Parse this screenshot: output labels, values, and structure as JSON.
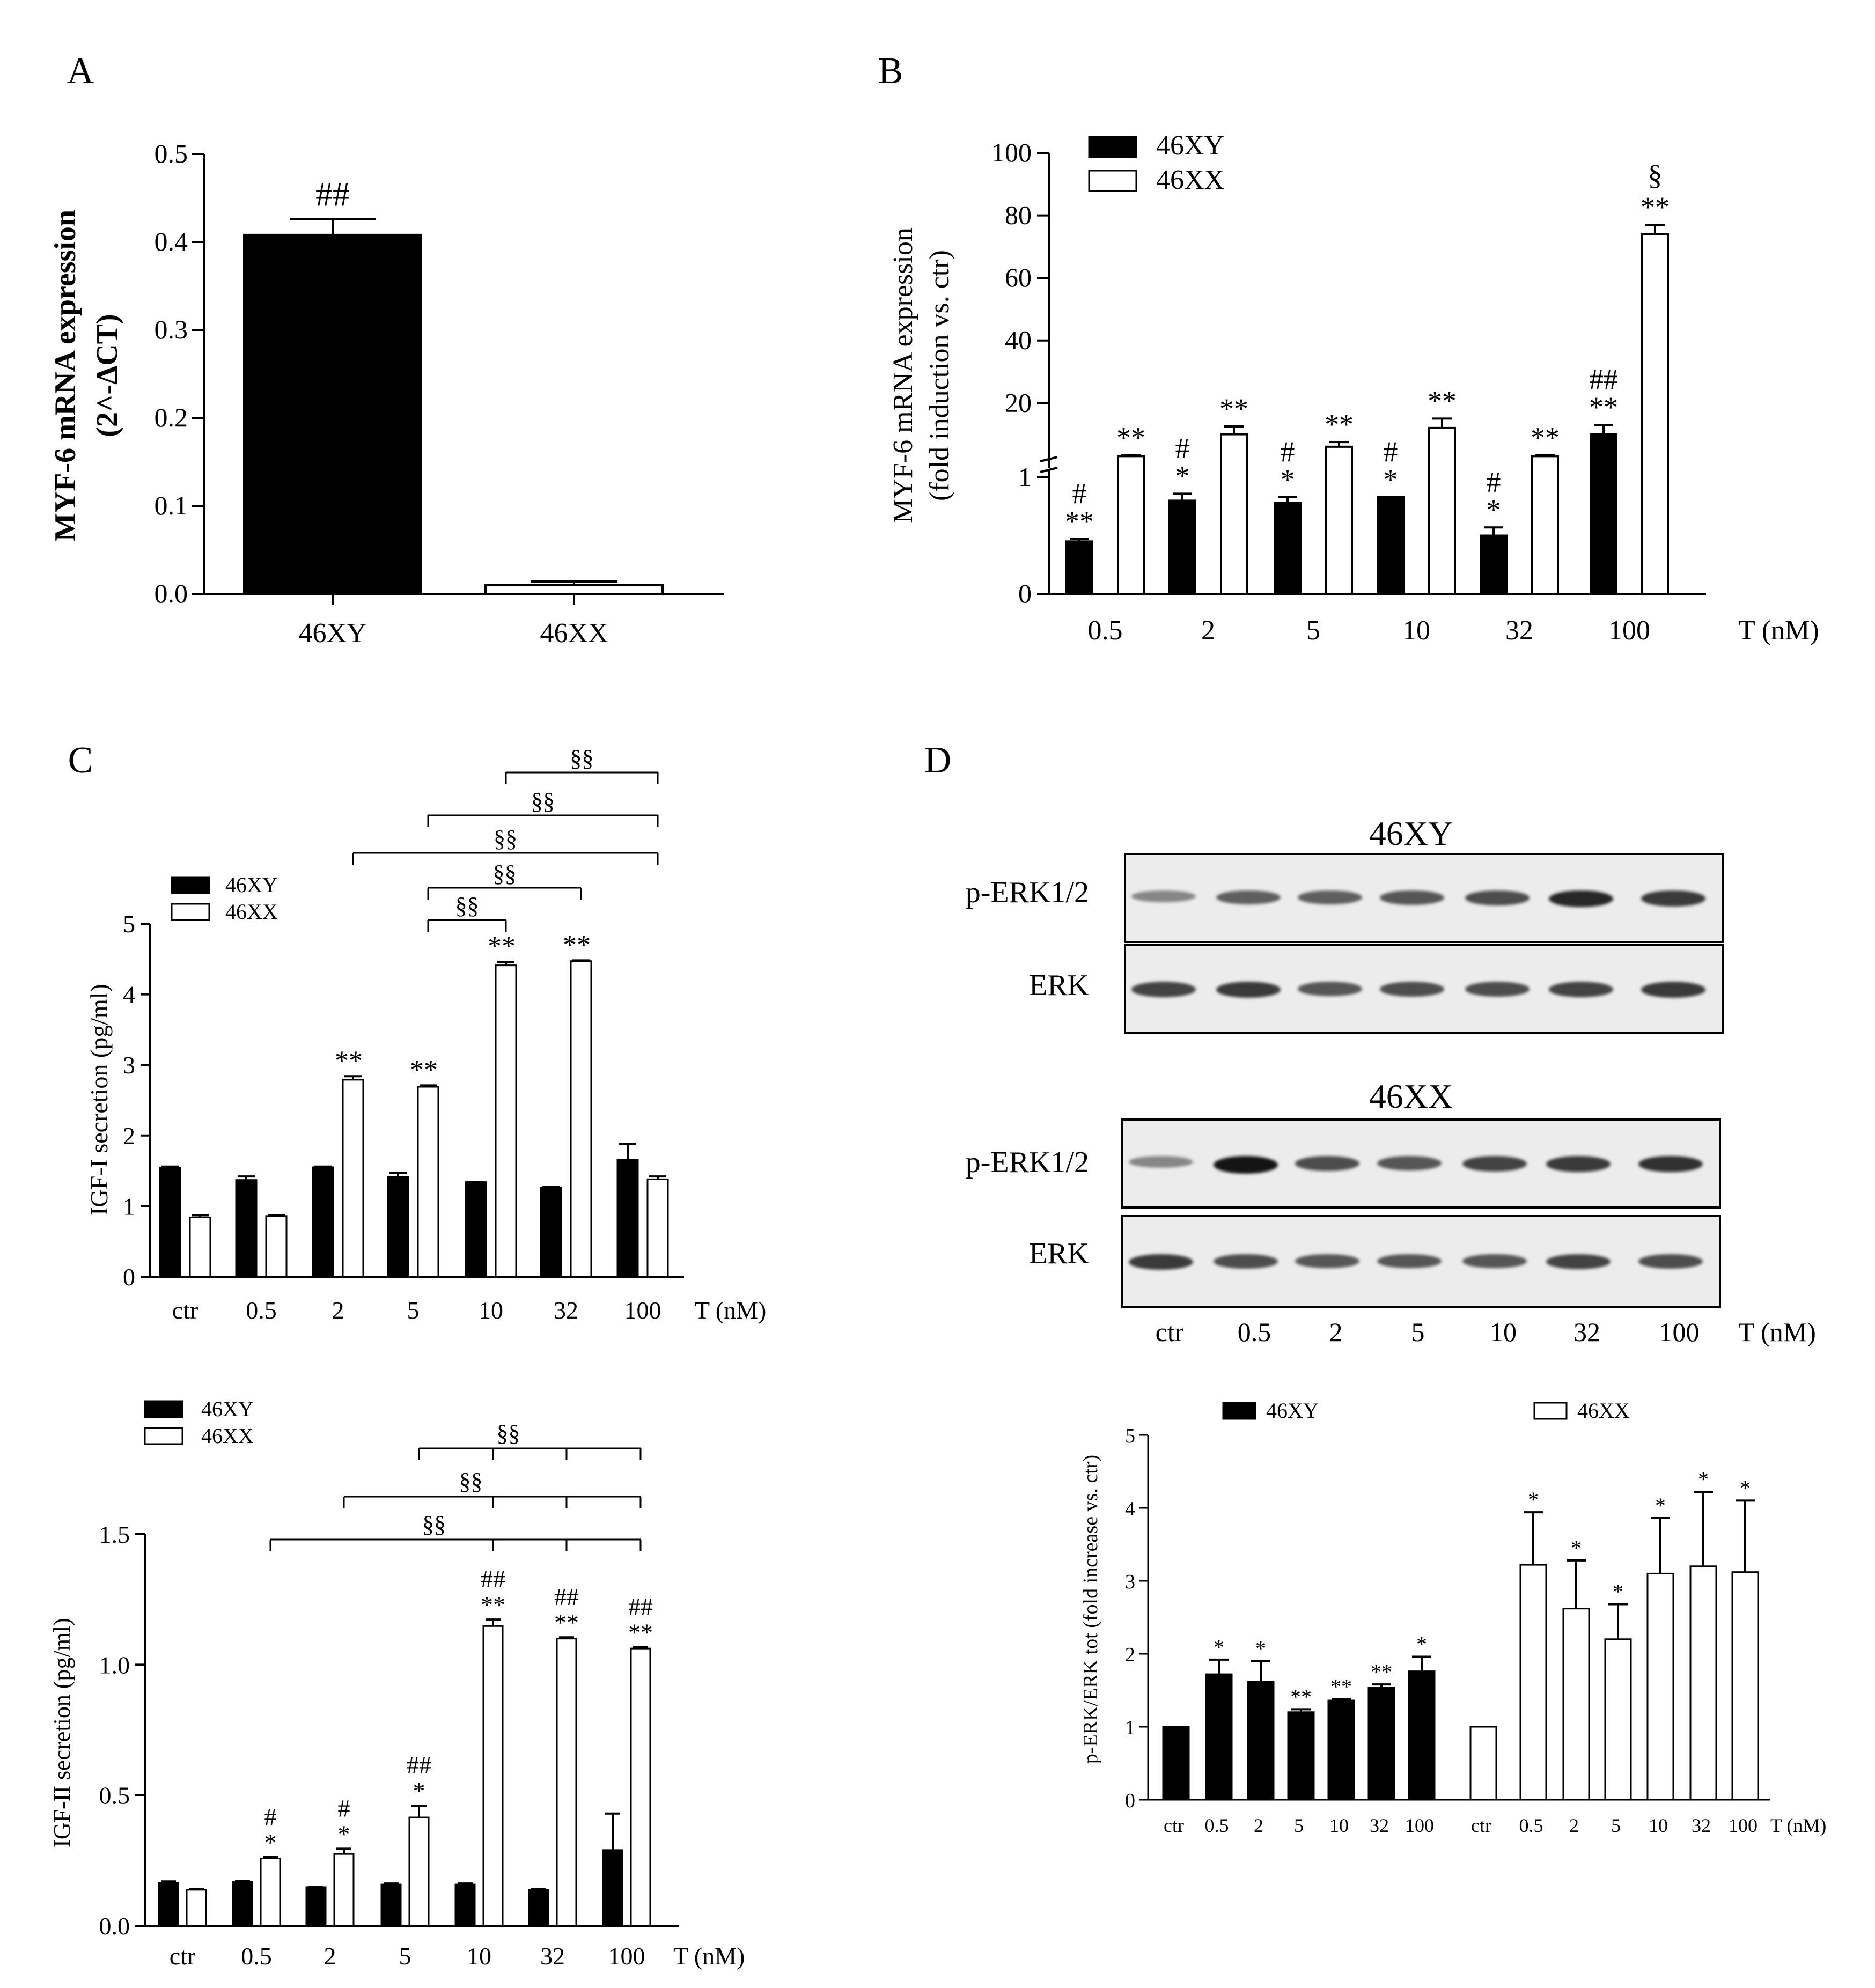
{
  "chart_data": [
    {
      "panel": "A",
      "type": "bar",
      "ylabel": "MYF-6 mRNA expression",
      "ylabel2": "(2^-ΔCT)",
      "categories": [
        "46XY",
        "46XX"
      ],
      "values": [
        0.408,
        0.01
      ],
      "errors": [
        0.018,
        0.004
      ],
      "yticks": [
        "0.0",
        "0.1",
        "0.2",
        "0.3",
        "0.4",
        "0.5"
      ],
      "ylim": [
        0,
        0.5
      ],
      "annotations": [
        "##",
        ""
      ],
      "fills": [
        "#000000",
        "#ffffff"
      ]
    },
    {
      "panel": "B",
      "type": "bar",
      "ylabel": "MYF-6 mRNA expression",
      "ylabel2": "(fold induction vs. ctr)",
      "xlabel": "T (nM)",
      "categories": [
        "0.5",
        "2",
        "5",
        "10",
        "32",
        "100"
      ],
      "series": [
        {
          "name": "46XY",
          "values": [
            0.45,
            0.8,
            0.78,
            0.83,
            0.5,
            10
          ],
          "errors": [
            0.02,
            0.06,
            0.05,
            0.0,
            0.07,
            3
          ],
          "fill": "#000000",
          "annotations": [
            [
              "#",
              "**"
            ],
            [
              "#",
              "*"
            ],
            [
              "#",
              "*"
            ],
            [
              "#",
              "*"
            ],
            [
              "#",
              "*"
            ],
            [
              "##",
              "**"
            ]
          ]
        },
        {
          "name": "46XX",
          "values": [
            3,
            10,
            6,
            12,
            3,
            74
          ],
          "errors": [
            0.3,
            2.5,
            1.5,
            3,
            0.3,
            3
          ],
          "fill": "#ffffff",
          "annotations": [
            [
              "**"
            ],
            [
              "**"
            ],
            [
              "**"
            ],
            [
              "**"
            ],
            [
              "**"
            ],
            [
              "§",
              "**"
            ]
          ]
        }
      ],
      "yticks": [
        "0",
        "1",
        "20",
        "40",
        "60",
        "80",
        "100"
      ],
      "axis_break": true,
      "legend": "top-left"
    },
    {
      "panel": "C-top",
      "type": "bar",
      "ylabel": "IGF-I secretion (pg/ml)",
      "xlabel": "T (nM)",
      "categories": [
        "ctr",
        "0.5",
        "2",
        "5",
        "10",
        "32",
        "100"
      ],
      "series": [
        {
          "name": "46XY",
          "values": [
            1.54,
            1.37,
            1.55,
            1.41,
            1.34,
            1.26,
            1.66
          ],
          "errors": [
            0.02,
            0.05,
            0.01,
            0.06,
            0.0,
            0.01,
            0.22
          ],
          "fill": "#000000"
        },
        {
          "name": "46XX",
          "values": [
            0.84,
            0.86,
            2.79,
            2.69,
            4.41,
            4.47,
            1.38
          ],
          "errors": [
            0.03,
            0.01,
            0.05,
            0.02,
            0.05,
            0.01,
            0.04
          ],
          "fill": "#ffffff",
          "annotations": [
            "",
            "",
            "**",
            "**",
            "**",
            "**",
            ""
          ]
        }
      ],
      "yticks": [
        "0",
        "1",
        "2",
        "3",
        "4",
        "5"
      ],
      "ylim": [
        0,
        5
      ],
      "legend": "top-left",
      "comparisons": [
        "§§",
        "§§",
        "§§",
        "§§",
        "§§"
      ]
    },
    {
      "panel": "C-bottom",
      "type": "bar",
      "ylabel": "IGF-II secretion (pg/ml)",
      "xlabel": "T (nM)",
      "categories": [
        "ctr",
        "0.5",
        "2",
        "5",
        "10",
        "32",
        "100"
      ],
      "series": [
        {
          "name": "46XY",
          "values": [
            0.165,
            0.168,
            0.148,
            0.158,
            0.158,
            0.138,
            0.29
          ],
          "errors": [
            0.005,
            0.003,
            0.002,
            0.004,
            0.004,
            0.002,
            0.14
          ],
          "fill": "#000000"
        },
        {
          "name": "46XX",
          "values": [
            0.138,
            0.258,
            0.275,
            0.415,
            1.148,
            1.1,
            1.062
          ],
          "errors": [
            0.002,
            0.005,
            0.02,
            0.045,
            0.025,
            0.005,
            0.005
          ],
          "fill": "#ffffff",
          "annotations": [
            [],
            [
              "#",
              "*"
            ],
            [
              "#",
              "*"
            ],
            [
              "##",
              "*"
            ],
            [
              "##",
              "**"
            ],
            [
              "##",
              "**"
            ],
            [
              "##",
              "**"
            ]
          ]
        }
      ],
      "yticks": [
        "0.0",
        "0.5",
        "1.0",
        "1.5"
      ],
      "ylim": [
        0,
        1.5
      ],
      "legend": "top-left",
      "comparisons": [
        "§§",
        "§§",
        "§§"
      ]
    },
    {
      "panel": "D-blot",
      "type": "table",
      "groups": [
        "46XY",
        "46XX"
      ],
      "row_labels": [
        "p-ERK1/2",
        "ERK"
      ],
      "lanes": [
        "ctr",
        "0.5",
        "2",
        "5",
        "10",
        "32",
        "100"
      ],
      "xlabel": "T (nM)",
      "band_intensity": {
        "46XY_pERK": [
          0.35,
          0.55,
          0.55,
          0.6,
          0.65,
          0.85,
          0.75
        ],
        "46XY_ERK": [
          0.7,
          0.75,
          0.6,
          0.65,
          0.65,
          0.7,
          0.75
        ],
        "46XX_pERK": [
          0.35,
          0.95,
          0.65,
          0.6,
          0.7,
          0.75,
          0.8
        ],
        "46XX_ERK": [
          0.75,
          0.65,
          0.6,
          0.6,
          0.6,
          0.7,
          0.65
        ]
      }
    },
    {
      "panel": "D-quant",
      "type": "bar",
      "ylabel": "p-ERK/ERK tot (fold increase vs. ctr)",
      "xlabel": "T (nM)",
      "categories": [
        "ctr",
        "0.5",
        "2",
        "5",
        "10",
        "32",
        "100"
      ],
      "series": [
        {
          "name": "46XY",
          "values": [
            1.0,
            1.72,
            1.62,
            1.2,
            1.36,
            1.54,
            1.76
          ],
          "errors": [
            0.0,
            0.2,
            0.28,
            0.04,
            0.02,
            0.04,
            0.2
          ],
          "fill": "#000000",
          "annotations": [
            "",
            "*",
            "*",
            "**",
            "**",
            "**",
            "*"
          ]
        },
        {
          "name": "46XX",
          "values": [
            1.0,
            3.22,
            2.62,
            2.2,
            3.1,
            3.2,
            3.12
          ],
          "errors": [
            0.0,
            0.72,
            0.66,
            0.48,
            0.76,
            1.02,
            0.98
          ],
          "fill": "#ffffff",
          "annotations": [
            "",
            "*",
            "*",
            "*",
            "*",
            "*",
            "*"
          ]
        }
      ],
      "yticks": [
        "0",
        "1",
        "2",
        "3",
        "4",
        "5"
      ],
      "ylim": [
        0,
        5
      ],
      "legend": "top"
    }
  ],
  "panels": {
    "A": "A",
    "B": "B",
    "C": "C",
    "D": "D"
  }
}
